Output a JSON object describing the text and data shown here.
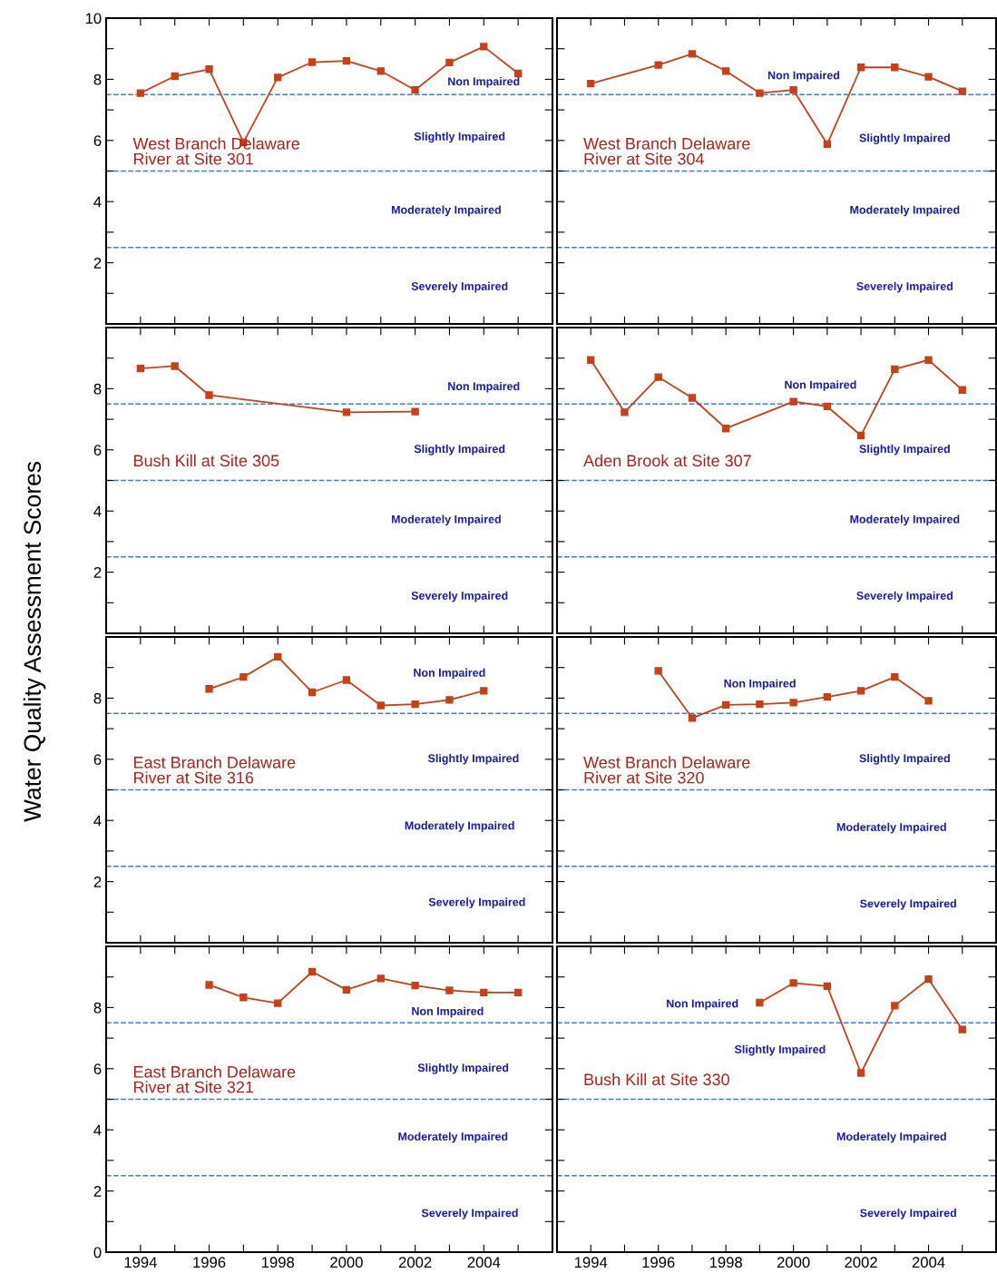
{
  "chart_data": [
    {
      "type": "line",
      "title": "West Branch Delaware\nRiver at Site 301",
      "ylabel": "Water Quality Assessment Scores",
      "tick_labels": "y",
      "marker": "square",
      "line_style": "solid",
      "series": [
        {
          "color": "#c8401a",
          "x": [
            1994,
            1995,
            1996,
            1997,
            1998,
            1999,
            2000,
            2001,
            2002,
            2003,
            2004,
            2005
          ],
          "values": [
            7.55,
            8.1,
            8.33,
            5.94,
            8.06,
            8.56,
            8.6,
            8.27,
            7.65,
            8.55,
            9.07,
            8.19
          ]
        }
      ],
      "xlim": [
        1993,
        2006
      ],
      "ylim": [
        0,
        10
      ],
      "xticks": [
        1994,
        {
          "value": 1995,
          "label": null
        },
        1996,
        {
          "value": 1997,
          "label": null
        },
        1998,
        {
          "value": 1999,
          "label": null
        },
        2000,
        {
          "value": 2001,
          "label": null
        },
        2002,
        {
          "value": 2003,
          "label": null
        },
        2004,
        {
          "value": 2005,
          "label": null
        }
      ],
      "yticks": [
        {
          "value": 1,
          "label": null
        },
        2,
        {
          "value": 3,
          "label": null
        },
        4,
        {
          "value": 5,
          "label": null
        },
        6,
        {
          "value": 7,
          "label": null
        },
        8,
        {
          "value": 9,
          "label": null
        },
        10
      ],
      "ref_lines": [
        {
          "axis": "y",
          "value": 7.5,
          "color": "#3a7fd5",
          "line_style": "dashed"
        },
        {
          "axis": "y",
          "value": 5,
          "color": "#3a7fd5",
          "line_style": "dashed"
        },
        {
          "axis": "y",
          "value": 2.5,
          "color": "#3a7fd5",
          "line_style": "dashed"
        }
      ],
      "annotations": [
        "Non Impaired",
        "Slightly Impaired",
        "Moderately Impaired",
        "Severely Impaired"
      ]
    },
    {
      "type": "line",
      "title": "West Branch Delaware\nRiver at Site 304",
      "tick_labels": false,
      "marker": "square",
      "line_style": "solid",
      "series": [
        {
          "color": "#c8401a",
          "x": [
            1994,
            1996,
            1997,
            1998,
            1999,
            2000,
            2001,
            2002,
            2003,
            2004,
            2005
          ],
          "values": [
            7.86,
            8.47,
            8.83,
            8.27,
            7.55,
            7.65,
            5.88,
            8.39,
            8.39,
            8.08,
            7.61
          ]
        }
      ],
      "xlim": [
        1993,
        2006
      ],
      "ylim": [
        0,
        10
      ],
      "xticks": [
        1994,
        {
          "value": 1995,
          "label": null
        },
        1996,
        {
          "value": 1997,
          "label": null
        },
        1998,
        {
          "value": 1999,
          "label": null
        },
        2000,
        {
          "value": 2001,
          "label": null
        },
        2002,
        {
          "value": 2003,
          "label": null
        },
        2004,
        {
          "value": 2005,
          "label": null
        }
      ],
      "yticks": [
        {
          "value": 1,
          "label": null
        },
        2,
        {
          "value": 3,
          "label": null
        },
        4,
        {
          "value": 5,
          "label": null
        },
        6,
        {
          "value": 7,
          "label": null
        },
        8,
        {
          "value": 9,
          "label": null
        }
      ],
      "ref_lines": [
        {
          "axis": "y",
          "value": 7.5,
          "color": "#3a7fd5",
          "line_style": "dashed"
        },
        {
          "axis": "y",
          "value": 5,
          "color": "#3a7fd5",
          "line_style": "dashed"
        },
        {
          "axis": "y",
          "value": 2.5,
          "color": "#3a7fd5",
          "line_style": "dashed"
        }
      ],
      "annotations": [
        "Non Impaired",
        "Slightly Impaired",
        "Moderately Impaired",
        "Severely Impaired"
      ]
    },
    {
      "type": "line",
      "title": "Bush Kill at Site 305",
      "tick_labels": "y",
      "marker": "square",
      "line_style": "solid",
      "series": [
        {
          "color": "#c8401a",
          "x": [
            1994,
            1995,
            1996,
            2000,
            2002
          ],
          "values": [
            8.66,
            8.74,
            7.79,
            7.23,
            7.25
          ]
        }
      ],
      "xlim": [
        1993,
        2006
      ],
      "ylim": [
        0,
        10
      ],
      "xticks": [
        1994,
        {
          "value": 1995,
          "label": null
        },
        1996,
        {
          "value": 1997,
          "label": null
        },
        1998,
        {
          "value": 1999,
          "label": null
        },
        2000,
        {
          "value": 2001,
          "label": null
        },
        2002,
        {
          "value": 2003,
          "label": null
        },
        2004,
        {
          "value": 2005,
          "label": null
        }
      ],
      "yticks": [
        {
          "value": 1,
          "label": null
        },
        2,
        {
          "value": 3,
          "label": null
        },
        4,
        {
          "value": 5,
          "label": null
        },
        6,
        {
          "value": 7,
          "label": null
        },
        8,
        {
          "value": 9,
          "label": null
        }
      ],
      "ref_lines": [
        {
          "axis": "y",
          "value": 7.5,
          "color": "#3a7fd5",
          "line_style": "dashed"
        },
        {
          "axis": "y",
          "value": 5,
          "color": "#3a7fd5",
          "line_style": "dashed"
        },
        {
          "axis": "y",
          "value": 2.5,
          "color": "#3a7fd5",
          "line_style": "dashed"
        }
      ],
      "annotations": [
        "Non Impaired",
        "Slightly Impaired",
        "Moderately Impaired",
        "Severely Impaired"
      ]
    },
    {
      "type": "line",
      "title": "Aden Brook at Site 307",
      "tick_labels": false,
      "marker": "square",
      "line_style": "solid",
      "series": [
        {
          "color": "#c8401a",
          "x": [
            1994,
            1995,
            1996,
            1997,
            1998,
            2000,
            2001,
            2002,
            2003,
            2004,
            2005
          ],
          "values": [
            8.94,
            7.23,
            8.38,
            7.7,
            6.7,
            7.58,
            7.42,
            6.47,
            8.64,
            8.94,
            7.96
          ]
        }
      ],
      "xlim": [
        1993,
        2006
      ],
      "ylim": [
        0,
        10
      ],
      "xticks": [
        1994,
        {
          "value": 1995,
          "label": null
        },
        1996,
        {
          "value": 1997,
          "label": null
        },
        1998,
        {
          "value": 1999,
          "label": null
        },
        2000,
        {
          "value": 2001,
          "label": null
        },
        2002,
        {
          "value": 2003,
          "label": null
        },
        2004,
        {
          "value": 2005,
          "label": null
        }
      ],
      "yticks": [
        {
          "value": 1,
          "label": null
        },
        2,
        {
          "value": 3,
          "label": null
        },
        4,
        {
          "value": 5,
          "label": null
        },
        6,
        {
          "value": 7,
          "label": null
        },
        8,
        {
          "value": 9,
          "label": null
        }
      ],
      "ref_lines": [
        {
          "axis": "y",
          "value": 7.5,
          "color": "#3a7fd5",
          "line_style": "dashed"
        },
        {
          "axis": "y",
          "value": 5,
          "color": "#3a7fd5",
          "line_style": "dashed"
        },
        {
          "axis": "y",
          "value": 2.5,
          "color": "#3a7fd5",
          "line_style": "dashed"
        }
      ],
      "annotations": [
        "Non Impaired",
        "Slightly Impaired",
        "Moderately Impaired",
        "Severely Impaired"
      ]
    },
    {
      "type": "line",
      "title": "East Branch Delaware\nRiver at Site 316",
      "tick_labels": "y",
      "marker": "square",
      "line_style": "solid",
      "series": [
        {
          "color": "#c8401a",
          "x": [
            1996,
            1997,
            1998,
            1999,
            2000,
            2001,
            2002,
            2003,
            2004
          ],
          "values": [
            8.3,
            8.69,
            9.35,
            8.19,
            8.59,
            7.76,
            7.8,
            7.94,
            8.24
          ]
        }
      ],
      "xlim": [
        1993,
        2006
      ],
      "ylim": [
        0,
        10
      ],
      "xticks": [
        1994,
        {
          "value": 1995,
          "label": null
        },
        1996,
        {
          "value": 1997,
          "label": null
        },
        1998,
        {
          "value": 1999,
          "label": null
        },
        2000,
        {
          "value": 2001,
          "label": null
        },
        2002,
        {
          "value": 2003,
          "label": null
        },
        2004,
        {
          "value": 2005,
          "label": null
        }
      ],
      "yticks": [
        {
          "value": 1,
          "label": null
        },
        2,
        {
          "value": 3,
          "label": null
        },
        4,
        {
          "value": 5,
          "label": null
        },
        6,
        {
          "value": 7,
          "label": null
        },
        8,
        {
          "value": 9,
          "label": null
        }
      ],
      "ref_lines": [
        {
          "axis": "y",
          "value": 7.5,
          "color": "#3a7fd5",
          "line_style": "dashed"
        },
        {
          "axis": "y",
          "value": 5,
          "color": "#3a7fd5",
          "line_style": "dashed"
        },
        {
          "axis": "y",
          "value": 2.5,
          "color": "#3a7fd5",
          "line_style": "dashed"
        }
      ],
      "annotations": [
        "Non Impaired",
        "Slightly Impaired",
        "Moderately Impaired",
        "Severely Impaired"
      ]
    },
    {
      "type": "line",
      "title": "West Branch Delaware\nRiver at Site 320",
      "tick_labels": false,
      "marker": "square",
      "line_style": "solid",
      "series": [
        {
          "color": "#c8401a",
          "x": [
            1996,
            1997,
            1998,
            1999,
            2000,
            2001,
            2002,
            2003,
            2004
          ],
          "values": [
            8.89,
            7.35,
            7.78,
            7.8,
            7.85,
            8.04,
            8.24,
            8.69,
            7.91
          ]
        }
      ],
      "xlim": [
        1993,
        2006
      ],
      "ylim": [
        0,
        10
      ],
      "xticks": [
        1994,
        {
          "value": 1995,
          "label": null
        },
        1996,
        {
          "value": 1997,
          "label": null
        },
        1998,
        {
          "value": 1999,
          "label": null
        },
        2000,
        {
          "value": 2001,
          "label": null
        },
        2002,
        {
          "value": 2003,
          "label": null
        },
        2004,
        {
          "value": 2005,
          "label": null
        }
      ],
      "yticks": [
        {
          "value": 1,
          "label": null
        },
        2,
        {
          "value": 3,
          "label": null
        },
        4,
        {
          "value": 5,
          "label": null
        },
        6,
        {
          "value": 7,
          "label": null
        },
        8,
        {
          "value": 9,
          "label": null
        }
      ],
      "ref_lines": [
        {
          "axis": "y",
          "value": 7.5,
          "color": "#3a7fd5",
          "line_style": "dashed"
        },
        {
          "axis": "y",
          "value": 5,
          "color": "#3a7fd5",
          "line_style": "dashed"
        },
        {
          "axis": "y",
          "value": 2.5,
          "color": "#3a7fd5",
          "line_style": "dashed"
        }
      ],
      "annotations": [
        "Non Impaired",
        "Slightly Impaired",
        "Moderately Impaired",
        "Severely Impaired"
      ]
    },
    {
      "type": "line",
      "title": "East Branch Delaware\nRiver at Site 321",
      "marker": "square",
      "line_style": "solid",
      "series": [
        {
          "color": "#c8401a",
          "x": [
            1996,
            1997,
            1998,
            1999,
            2000,
            2001,
            2002,
            2003,
            2004,
            2005
          ],
          "values": [
            8.74,
            8.33,
            8.14,
            9.17,
            8.58,
            8.95,
            8.72,
            8.56,
            8.49,
            8.49
          ]
        }
      ],
      "xlim": [
        1993,
        2006
      ],
      "ylim": [
        0,
        10
      ],
      "xticks": [
        1994,
        {
          "value": 1995,
          "label": null
        },
        1996,
        {
          "value": 1997,
          "label": null
        },
        1998,
        {
          "value": 1999,
          "label": null
        },
        2000,
        {
          "value": 2001,
          "label": null
        },
        2002,
        {
          "value": 2003,
          "label": null
        },
        2004,
        {
          "value": 2005,
          "label": null
        }
      ],
      "yticks": [
        0,
        {
          "value": 1,
          "label": null
        },
        2,
        {
          "value": 3,
          "label": null
        },
        4,
        {
          "value": 5,
          "label": null
        },
        6,
        {
          "value": 7,
          "label": null
        },
        8,
        {
          "value": 9,
          "label": null
        }
      ],
      "ref_lines": [
        {
          "axis": "y",
          "value": 7.5,
          "color": "#3a7fd5",
          "line_style": "dashed"
        },
        {
          "axis": "y",
          "value": 5,
          "color": "#3a7fd5",
          "line_style": "dashed"
        },
        {
          "axis": "y",
          "value": 2.5,
          "color": "#3a7fd5",
          "line_style": "dashed"
        }
      ],
      "annotations": [
        "Non Impaired",
        "Slightly Impaired",
        "Moderately Impaired",
        "Severely Impaired"
      ]
    },
    {
      "type": "line",
      "title": "Bush Kill at Site 330",
      "tick_labels": "x",
      "marker": "square",
      "line_style": "solid",
      "series": [
        {
          "color": "#c8401a",
          "x": [
            1999,
            2000,
            2001,
            2002,
            2003,
            2004,
            2005
          ],
          "values": [
            8.16,
            8.8,
            8.7,
            5.86,
            8.06,
            8.93,
            7.28
          ]
        }
      ],
      "xlim": [
        1993,
        2006
      ],
      "ylim": [
        0,
        10
      ],
      "xticks": [
        1994,
        {
          "value": 1995,
          "label": null
        },
        1996,
        {
          "value": 1997,
          "label": null
        },
        1998,
        {
          "value": 1999,
          "label": null
        },
        2000,
        {
          "value": 2001,
          "label": null
        },
        2002,
        {
          "value": 2003,
          "label": null
        },
        2004,
        {
          "value": 2005,
          "label": null
        }
      ],
      "yticks": [
        {
          "value": 1,
          "label": null
        },
        {
          "value": 2,
          "label": null
        },
        {
          "value": 3,
          "label": null
        },
        {
          "value": 4,
          "label": null
        },
        {
          "value": 5,
          "label": null
        },
        {
          "value": 6,
          "label": null
        },
        {
          "value": 7,
          "label": null
        },
        {
          "value": 8,
          "label": null
        },
        {
          "value": 9,
          "label": null
        }
      ],
      "ref_lines": [
        {
          "axis": "y",
          "value": 7.5,
          "color": "#3a7fd5",
          "line_style": "dashed"
        },
        {
          "axis": "y",
          "value": 5,
          "color": "#3a7fd5",
          "line_style": "dashed"
        },
        {
          "axis": "y",
          "value": 2.5,
          "color": "#3a7fd5",
          "line_style": "dashed"
        }
      ],
      "annotations": [
        "Non Impaired",
        "Slightly Impaired",
        "Moderately Impaired",
        "Severely Impaired"
      ]
    }
  ]
}
